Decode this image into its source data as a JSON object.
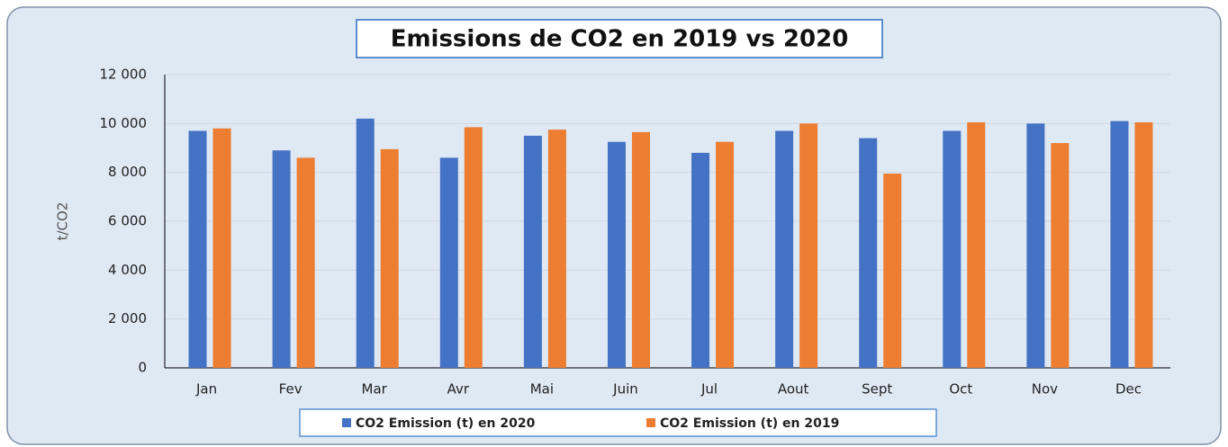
{
  "chart_data": {
    "type": "bar",
    "title": "Emissions de CO2 en 2019 vs 2020",
    "y_label": "t/CO2",
    "categories": [
      "Jan",
      "Fev",
      "Mar",
      "Avr",
      "Mai",
      "Juin",
      "Jul",
      "Aout",
      "Sept",
      "Oct",
      "Nov",
      "Dec"
    ],
    "series": [
      {
        "name": "CO2 Emission (t) en 2020",
        "color": "#4472c4",
        "values": [
          9700,
          8900,
          10200,
          8600,
          9500,
          9250,
          8800,
          9700,
          9400,
          9700,
          10000,
          10100
        ]
      },
      {
        "name": "CO2 Emission (t) en 2019",
        "color": "#ed7d31",
        "values": [
          9800,
          8600,
          8950,
          9850,
          9750,
          9650,
          9250,
          10000,
          7950,
          10050,
          9200,
          10050
        ]
      }
    ],
    "ylim": [
      0,
      12000
    ],
    "yticks": [
      0,
      {
        "value": 2000,
        "label": "2 000"
      },
      {
        "value": 4000,
        "label": "4 000"
      },
      {
        "value": 6000,
        "label": "6 000"
      },
      {
        "value": 8000,
        "label": "8 000"
      },
      {
        "value": 10000,
        "label": "10 000"
      },
      {
        "value": 12000,
        "label": "12 000"
      }
    ],
    "grid": true,
    "legend": "bottom"
  }
}
